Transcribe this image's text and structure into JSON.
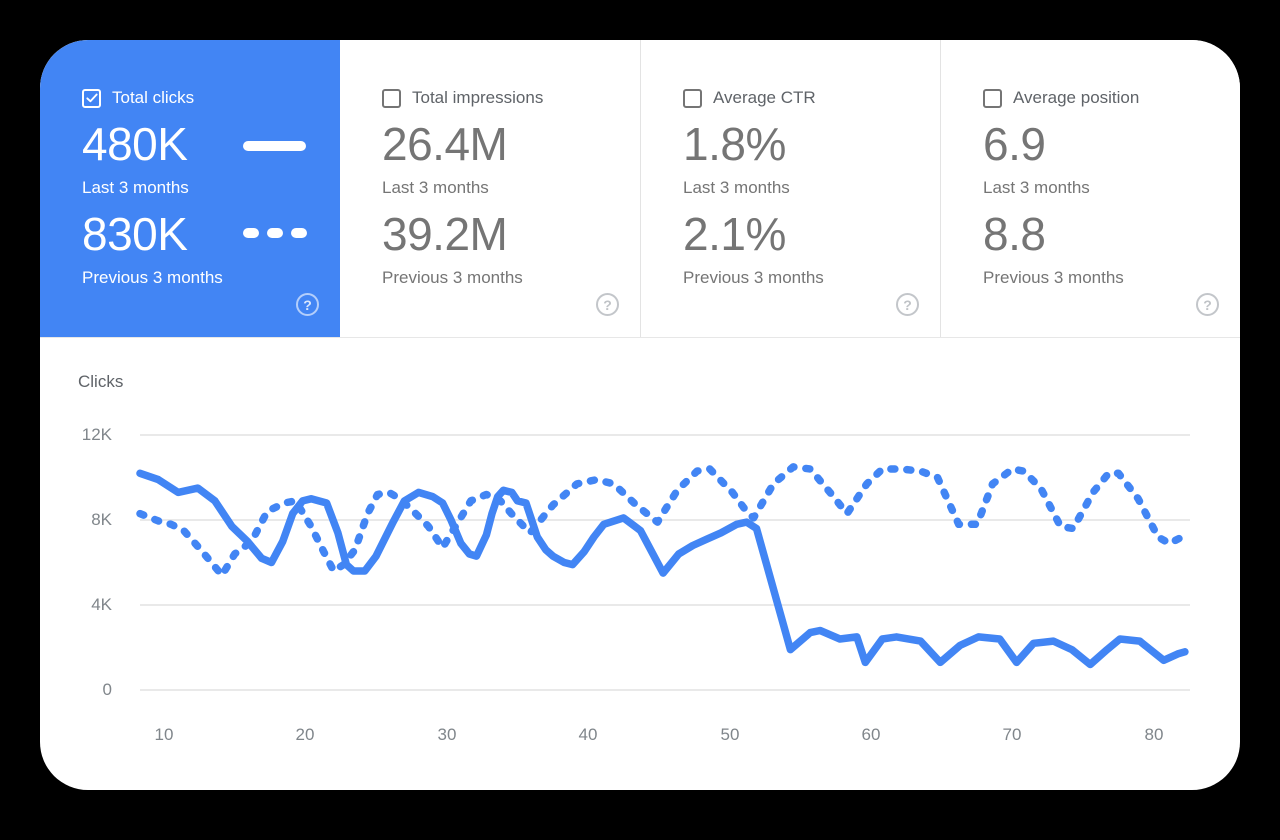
{
  "accent_color": "#4285f4",
  "help_glyph": "?",
  "cards": [
    {
      "label": "Total clicks",
      "checked": true,
      "selected": true,
      "value_last": "480K",
      "caption_last": "Last 3 months",
      "value_prev": "830K",
      "caption_prev": "Previous 3 months"
    },
    {
      "label": "Total impressions",
      "checked": false,
      "selected": false,
      "value_last": "26.4M",
      "caption_last": "Last 3 months",
      "value_prev": "39.2M",
      "caption_prev": "Previous 3 months"
    },
    {
      "label": "Average CTR",
      "checked": false,
      "selected": false,
      "value_last": "1.8%",
      "caption_last": "Last 3 months",
      "value_prev": "2.1%",
      "caption_prev": "Previous 3 months"
    },
    {
      "label": "Average position",
      "checked": false,
      "selected": false,
      "value_last": "6.9",
      "caption_last": "Last 3 months",
      "value_prev": "8.8",
      "caption_prev": "Previous 3 months"
    }
  ],
  "chart_data": {
    "type": "line",
    "ylabel": "Clicks",
    "y_values_unit": "K (thousands of clicks)",
    "ylim_k": [
      0,
      12
    ],
    "xlim": [
      8.3,
      82.2
    ],
    "gridlines_k": [
      0,
      4,
      8,
      12
    ],
    "y_ticks": [
      "12K",
      "8K",
      "4K",
      "0"
    ],
    "x_ticks": [
      "10",
      "20",
      "30",
      "40",
      "50",
      "60",
      "70",
      "80"
    ],
    "grid_on": true,
    "legend_position": "in first metric card (solid = last 3 months, dashed = previous 3 months)",
    "line_color": "#4285f4",
    "grid_color": "#e9e9e9",
    "series": [
      {
        "name": "Last 3 months",
        "style": "solid",
        "points": [
          [
            8.3,
            10.2
          ],
          [
            9.6,
            9.9
          ],
          [
            11,
            9.3
          ],
          [
            12.4,
            9.5
          ],
          [
            13.6,
            8.9
          ],
          [
            14.8,
            7.7
          ],
          [
            15.9,
            7
          ],
          [
            16.9,
            6.2
          ],
          [
            17.6,
            6
          ],
          [
            18.4,
            7
          ],
          [
            19.1,
            8.3
          ],
          [
            19.8,
            8.9
          ],
          [
            20.4,
            9
          ],
          [
            21.5,
            8.8
          ],
          [
            22.3,
            7.4
          ],
          [
            22.9,
            5.9
          ],
          [
            23.4,
            5.6
          ],
          [
            24.2,
            5.6
          ],
          [
            25,
            6.3
          ],
          [
            25.6,
            7.1
          ],
          [
            26.2,
            7.9
          ],
          [
            27,
            8.9
          ],
          [
            28,
            9.3
          ],
          [
            29,
            9.1
          ],
          [
            29.7,
            8.8
          ],
          [
            30.3,
            8
          ],
          [
            31,
            6.9
          ],
          [
            31.6,
            6.4
          ],
          [
            32.1,
            6.3
          ],
          [
            32.8,
            7.3
          ],
          [
            33.2,
            8.3
          ],
          [
            33.6,
            9.1
          ],
          [
            34,
            9.4
          ],
          [
            34.6,
            9.3
          ],
          [
            35,
            8.9
          ],
          [
            35.6,
            8.8
          ],
          [
            36.4,
            7.2
          ],
          [
            37,
            6.6
          ],
          [
            37.5,
            6.3
          ],
          [
            38.3,
            6
          ],
          [
            38.9,
            5.9
          ],
          [
            39.7,
            6.5
          ],
          [
            40.4,
            7.2
          ],
          [
            41.1,
            7.8
          ],
          [
            42.5,
            8.1
          ],
          [
            43.7,
            7.5
          ],
          [
            45.3,
            5.5
          ],
          [
            46.4,
            6.4
          ],
          [
            47.4,
            6.8
          ],
          [
            48.4,
            7.1
          ],
          [
            49.4,
            7.4
          ],
          [
            50.5,
            7.8
          ],
          [
            51.2,
            7.9
          ],
          [
            51.9,
            7.6
          ],
          [
            54.3,
            1.9
          ],
          [
            55.7,
            2.7
          ],
          [
            56.4,
            2.8
          ],
          [
            57.8,
            2.4
          ],
          [
            59,
            2.5
          ],
          [
            59.6,
            1.3
          ],
          [
            60.8,
            2.4
          ],
          [
            61.8,
            2.5
          ],
          [
            63.5,
            2.3
          ],
          [
            64.9,
            1.3
          ],
          [
            66.3,
            2.1
          ],
          [
            67.6,
            2.5
          ],
          [
            69.1,
            2.4
          ],
          [
            70.3,
            1.3
          ],
          [
            71.5,
            2.2
          ],
          [
            72.9,
            2.3
          ],
          [
            74.2,
            1.9
          ],
          [
            75.5,
            1.2
          ],
          [
            76.7,
            1.9
          ],
          [
            77.6,
            2.4
          ],
          [
            79,
            2.3
          ],
          [
            80.7,
            1.4
          ],
          [
            81.7,
            1.7
          ],
          [
            82.2,
            1.8
          ]
        ]
      },
      {
        "name": "Previous 3 months",
        "style": "dashed",
        "points": [
          [
            8.3,
            8.3
          ],
          [
            9.8,
            7.9
          ],
          [
            10.5,
            7.8
          ],
          [
            11.4,
            7.5
          ],
          [
            12.6,
            6.6
          ],
          [
            13.6,
            5.8
          ],
          [
            14.1,
            5.4
          ],
          [
            15,
            6.4
          ],
          [
            16.2,
            7
          ],
          [
            17.3,
            8.4
          ],
          [
            18.5,
            8.8
          ],
          [
            19.3,
            8.9
          ],
          [
            20.4,
            7.7
          ],
          [
            21.3,
            6.5
          ],
          [
            22,
            5.6
          ],
          [
            22.7,
            5.9
          ],
          [
            23.5,
            6.6
          ],
          [
            24.4,
            8.3
          ],
          [
            25.1,
            9.2
          ],
          [
            25.9,
            9.3
          ],
          [
            26.7,
            9
          ],
          [
            27.8,
            8.3
          ],
          [
            28.7,
            7.7
          ],
          [
            29.7,
            6.7
          ],
          [
            30.8,
            7.9
          ],
          [
            31.7,
            8.9
          ],
          [
            32.8,
            9.2
          ],
          [
            33.8,
            8.9
          ],
          [
            34.7,
            8.2
          ],
          [
            35.9,
            7.4
          ],
          [
            37.5,
            8.7
          ],
          [
            39.2,
            9.7
          ],
          [
            40.6,
            9.9
          ],
          [
            41.8,
            9.7
          ],
          [
            43.4,
            8.7
          ],
          [
            44.9,
            7.9
          ],
          [
            46.3,
            9.4
          ],
          [
            47.7,
            10.3
          ],
          [
            48.6,
            10.4
          ],
          [
            50.2,
            9.3
          ],
          [
            51.2,
            8.4
          ],
          [
            51.7,
            8.1
          ],
          [
            53.1,
            9.7
          ],
          [
            54.5,
            10.5
          ],
          [
            55.7,
            10.4
          ],
          [
            57.1,
            9.3
          ],
          [
            58.3,
            8.3
          ],
          [
            59.7,
            9.7
          ],
          [
            60.8,
            10.4
          ],
          [
            62.1,
            10.4
          ],
          [
            63.5,
            10.3
          ],
          [
            64.7,
            10
          ],
          [
            66.2,
            7.8
          ],
          [
            67.5,
            7.8
          ],
          [
            68.6,
            9.7
          ],
          [
            70,
            10.4
          ],
          [
            70.8,
            10.3
          ],
          [
            72,
            9.5
          ],
          [
            73.4,
            7.7
          ],
          [
            74.3,
            7.6
          ],
          [
            75.7,
            9.3
          ],
          [
            76.8,
            10.2
          ],
          [
            77.5,
            10.2
          ],
          [
            78.9,
            9
          ],
          [
            80.3,
            7.2
          ],
          [
            81.1,
            6.9
          ],
          [
            82,
            7.2
          ]
        ]
      }
    ]
  }
}
